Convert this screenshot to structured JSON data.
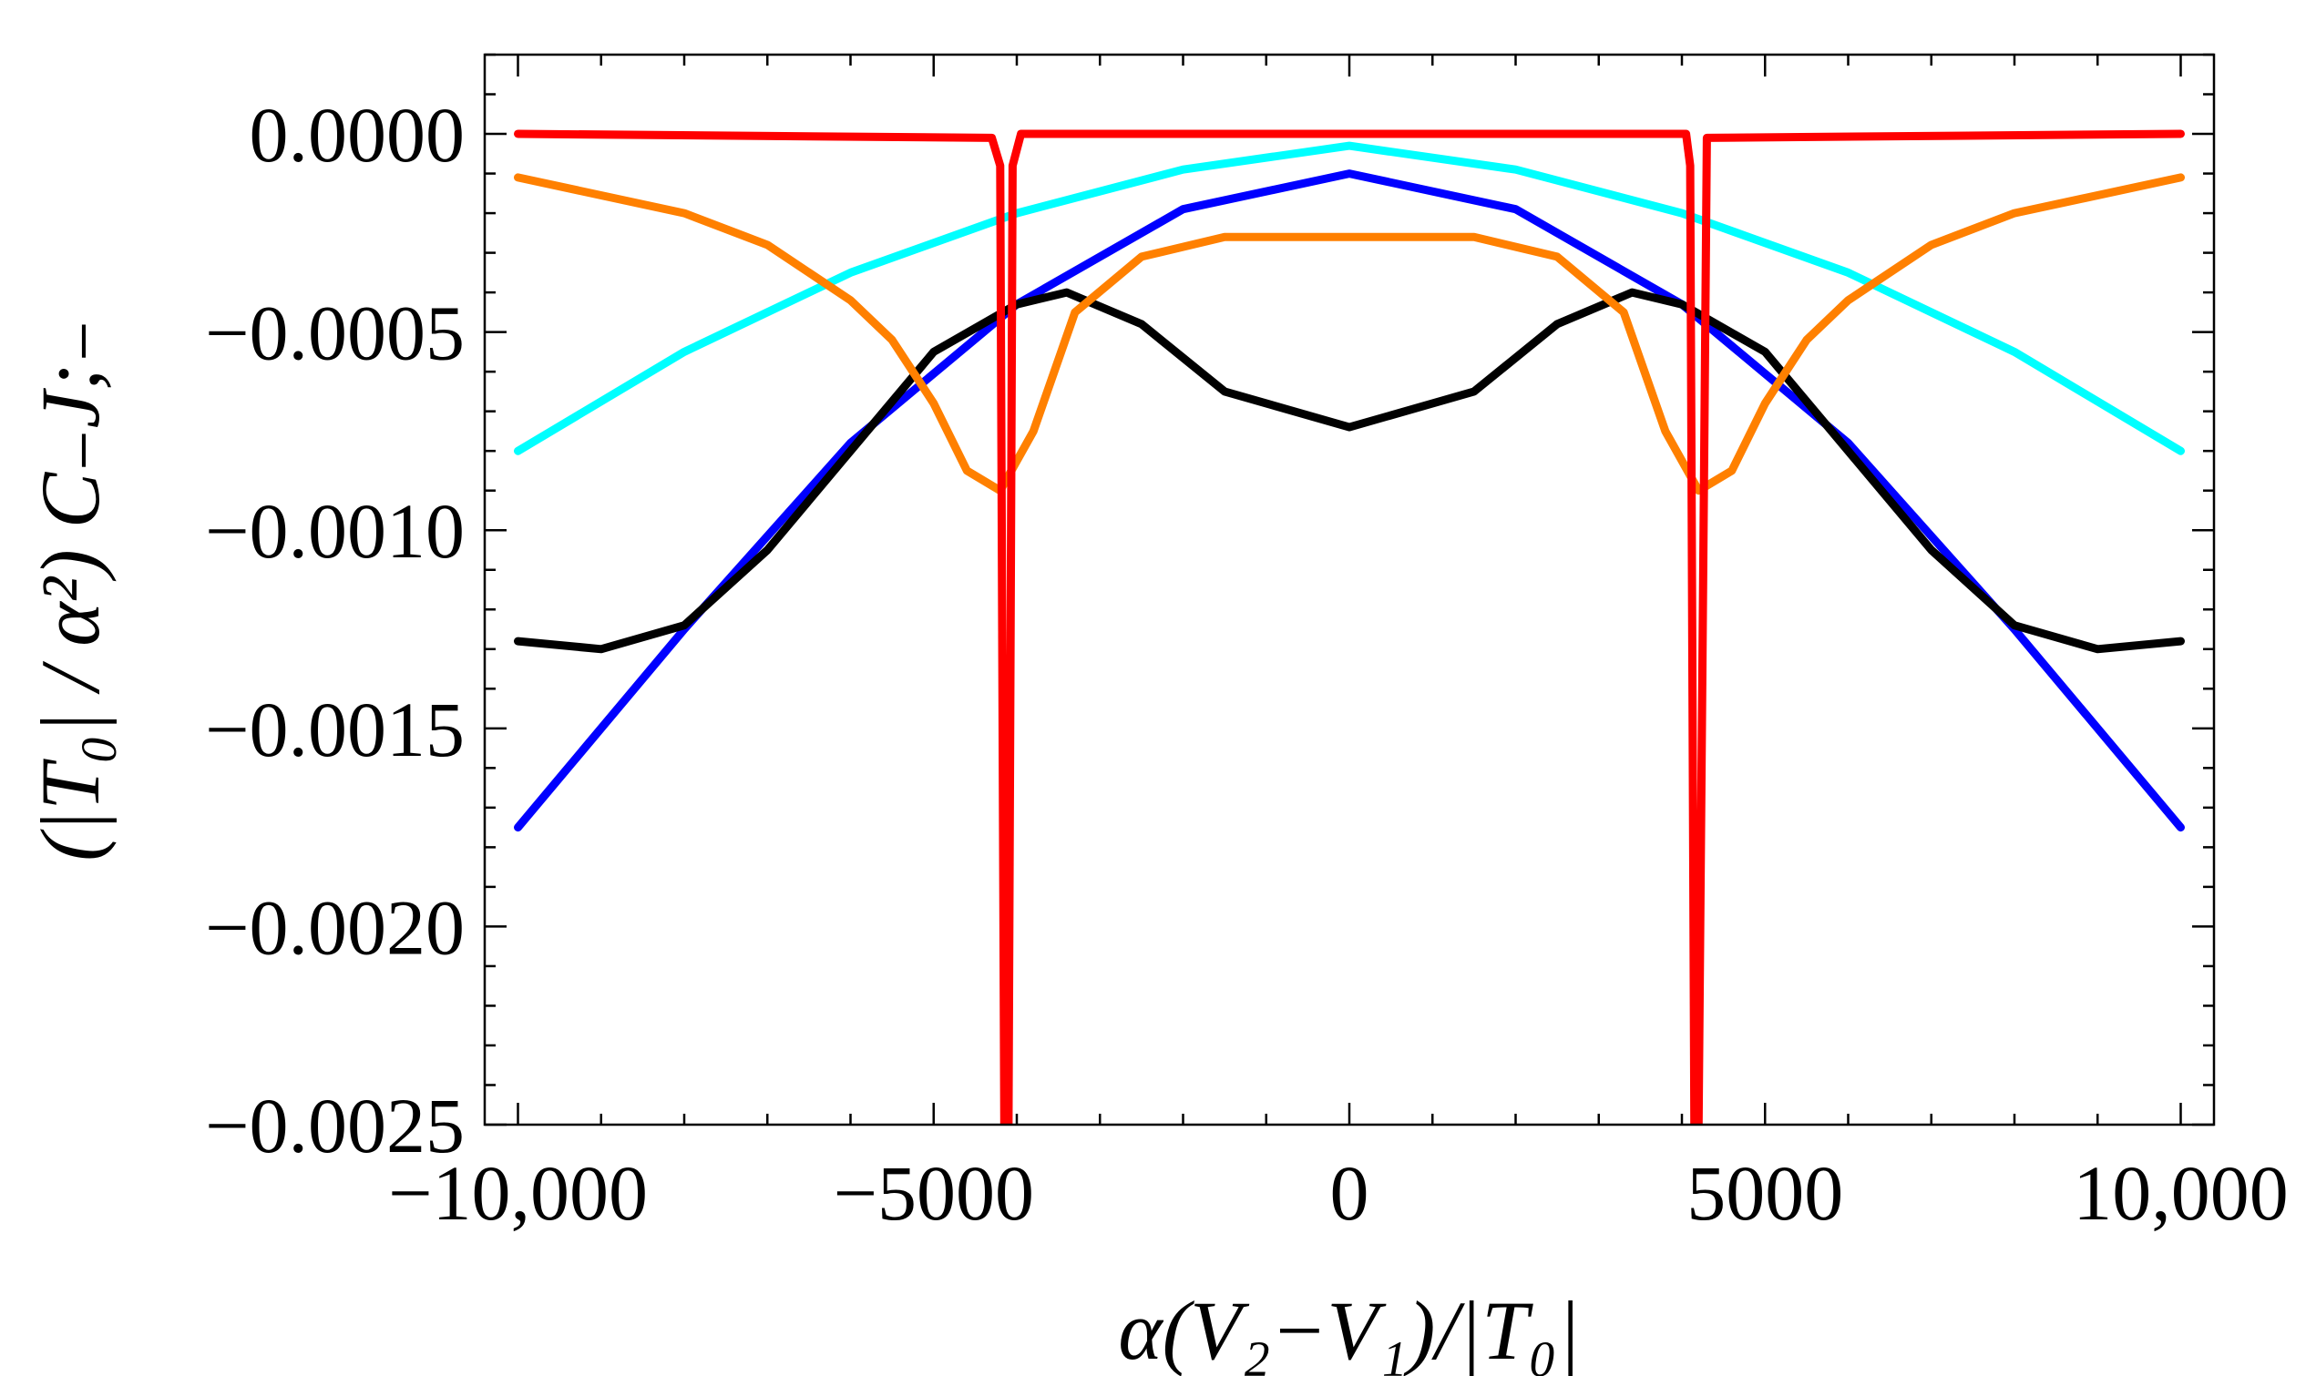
{
  "chart_data": {
    "type": "line",
    "title": "",
    "xlabel": "α(V₂−V₁)/|T₀|",
    "ylabel": "(|T₀| / α²) C₋J;₋",
    "xlim": [
      -10400,
      10400
    ],
    "ylim": [
      -0.0025,
      0.0002
    ],
    "grid": false,
    "x_ticks": [
      -10000,
      -5000,
      0,
      5000,
      10000
    ],
    "x_tick_labels": [
      "−10,000",
      "−5000",
      "0",
      "5000",
      "10,000"
    ],
    "y_ticks": [
      0,
      -0.0005,
      -0.001,
      -0.0015,
      -0.002,
      -0.0025
    ],
    "y_tick_labels": [
      "0.0000",
      "−0.0005",
      "−0.0010",
      "−0.0015",
      "−0.0020",
      "−0.0025"
    ],
    "series": [
      {
        "name": "cyan",
        "color": "#00FFFF",
        "x": [
          -10000,
          -8000,
          -6000,
          -4000,
          -2000,
          0,
          2000,
          4000,
          6000,
          8000,
          10000
        ],
        "values": [
          -0.0008,
          -0.00055,
          -0.00035,
          -0.0002,
          -9e-05,
          -3e-05,
          -9e-05,
          -0.0002,
          -0.00035,
          -0.00055,
          -0.0008
        ]
      },
      {
        "name": "blue",
        "color": "#0000FF",
        "x": [
          -10000,
          -8000,
          -6000,
          -4000,
          -2000,
          0,
          2000,
          4000,
          6000,
          8000,
          10000
        ],
        "values": [
          -0.00175,
          -0.00125,
          -0.00078,
          -0.00043,
          -0.00019,
          -0.0001,
          -0.00019,
          -0.00043,
          -0.00078,
          -0.00125,
          -0.00175
        ]
      },
      {
        "name": "black",
        "color": "#000000",
        "x": [
          -10000,
          -9000,
          -8000,
          -7000,
          -6000,
          -5000,
          -4000,
          -3400,
          -2500,
          -1500,
          0,
          1500,
          2500,
          3400,
          4000,
          5000,
          6000,
          7000,
          8000,
          9000,
          10000
        ],
        "values": [
          -0.00128,
          -0.0013,
          -0.00124,
          -0.00105,
          -0.0008,
          -0.00055,
          -0.00043,
          -0.0004,
          -0.00048,
          -0.00065,
          -0.00074,
          -0.00065,
          -0.00048,
          -0.0004,
          -0.00043,
          -0.00055,
          -0.0008,
          -0.00105,
          -0.00124,
          -0.0013,
          -0.00128
        ]
      },
      {
        "name": "orange",
        "color": "#FF8000",
        "x": [
          -10000,
          -8000,
          -7000,
          -6000,
          -5500,
          -5000,
          -4600,
          -4200,
          -3800,
          -3300,
          -2500,
          -1500,
          0,
          1500,
          2500,
          3300,
          3800,
          4200,
          4600,
          5000,
          5500,
          6000,
          7000,
          8000,
          10000
        ],
        "values": [
          -0.00011,
          -0.0002,
          -0.00028,
          -0.00042,
          -0.00052,
          -0.00068,
          -0.00085,
          -0.0009,
          -0.00075,
          -0.00045,
          -0.00031,
          -0.00026,
          -0.00026,
          -0.00026,
          -0.00031,
          -0.00045,
          -0.00075,
          -0.0009,
          -0.00085,
          -0.00068,
          -0.00052,
          -0.00042,
          -0.00028,
          -0.0002,
          -0.00011
        ]
      },
      {
        "name": "red",
        "color": "#FF0000",
        "x": [
          -10000,
          -4300,
          -4200,
          -4150,
          -4100,
          -4050,
          -3950,
          4050,
          4100,
          4150,
          4200,
          4300,
          10000
        ],
        "values": [
          0,
          -1e-05,
          -8e-05,
          -0.0025,
          -0.0025,
          -8e-05,
          0,
          0,
          -8e-05,
          -0.0025,
          -0.0025,
          -1e-05,
          0
        ]
      }
    ]
  }
}
